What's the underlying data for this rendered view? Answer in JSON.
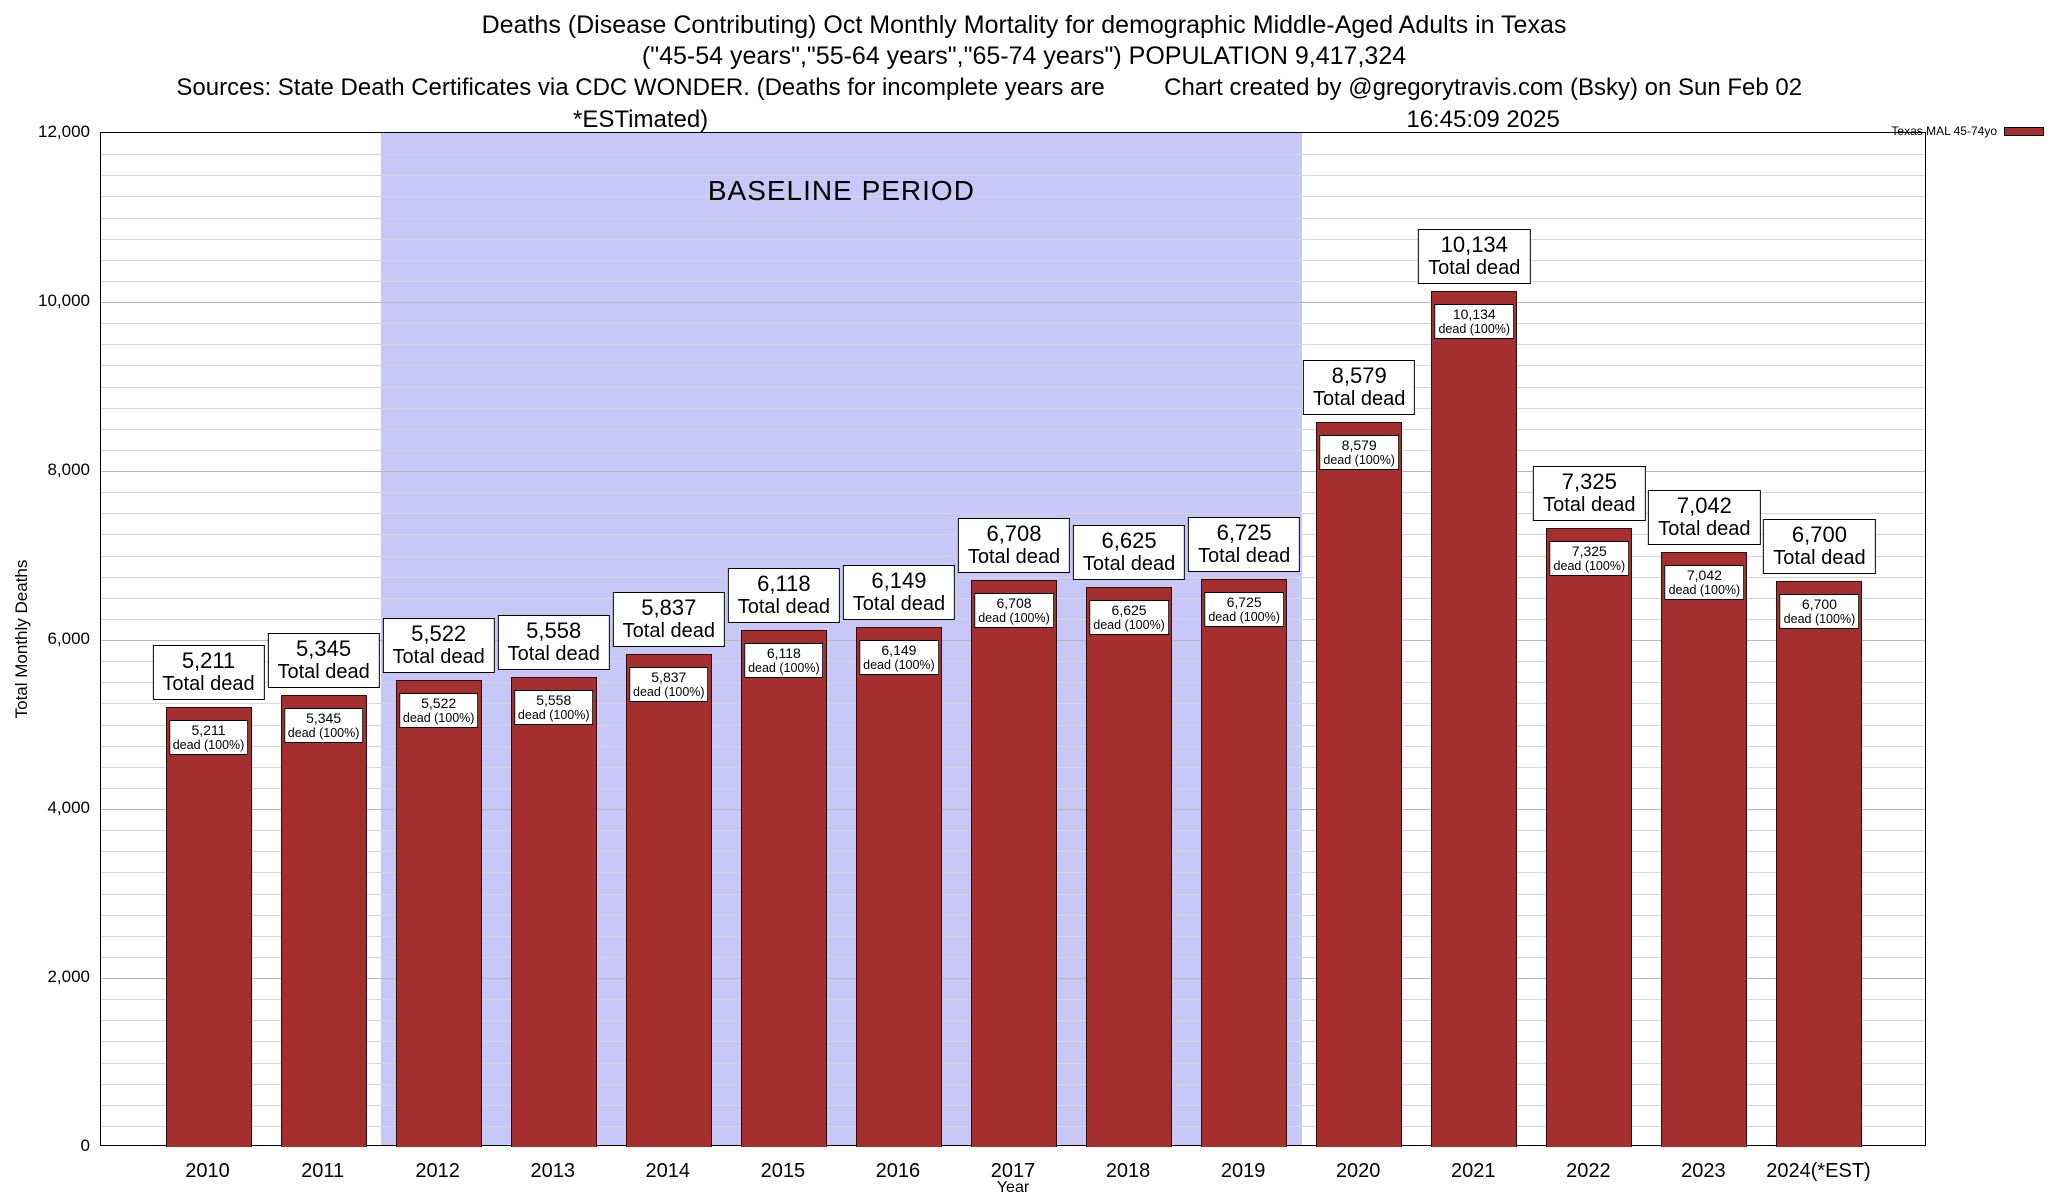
{
  "header": {
    "title_line1": "Deaths (Disease Contributing) Oct Monthly Mortality for demographic Middle-Aged Adults in Texas",
    "title_line2": "(\"45-54 years\",\"55-64 years\",\"65-74 years\") POPULATION 9,417,324",
    "sources": "Sources: State Death Certificates via CDC WONDER. (Deaths for incomplete years are *ESTimated)",
    "credit": "Chart created by @gregorytravis.com (Bsky) on Sun Feb 02 16:45:09 2025"
  },
  "legend": {
    "label": "Texas MAL 45-74yo"
  },
  "chart_data": {
    "type": "bar",
    "title": "Deaths (Disease Contributing) Oct Monthly Mortality for demographic Middle-Aged Adults in Texas",
    "subtitle": "(\"45-54 years\",\"55-64 years\",\"65-74 years\") POPULATION 9,417,324",
    "categories": [
      "2010",
      "2011",
      "2012",
      "2013",
      "2014",
      "2015",
      "2016",
      "2017",
      "2018",
      "2019",
      "2020",
      "2021",
      "2022",
      "2023",
      "2024(*EST)"
    ],
    "values": [
      5211,
      5345,
      5522,
      5558,
      5837,
      6118,
      6149,
      6708,
      6625,
      6725,
      8579,
      10134,
      7325,
      7042,
      6700
    ],
    "xlabel": "Year",
    "ylabel": "Total Monthly Deaths",
    "ylim": [
      0,
      12000
    ],
    "y_major_step": 2000,
    "y_minor_step": 250,
    "grid": true,
    "legend_label": "Texas MAL 45-74yo",
    "legend_position": "top-right",
    "bar_color": "#a52f2f",
    "bar_border_color": "#2e0a0a",
    "annotation_value_suffix": "Total dead",
    "annotation_inner_suffix": "dead (100%)",
    "baseline_band": {
      "label": "BASELINE PERIOD",
      "from_category": "2012",
      "to_category": "2019",
      "color": "#c8c8f8"
    }
  }
}
